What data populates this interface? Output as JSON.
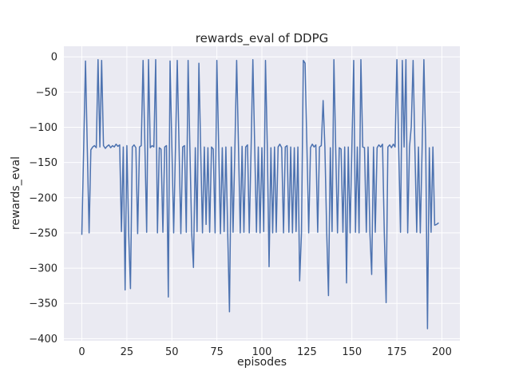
{
  "chart_data": {
    "type": "line",
    "title": "rewards_eval of DDPG",
    "xlabel": "episodes",
    "ylabel": "rewards_eval",
    "legend": "none",
    "grid": true,
    "plot_bg": "#EAEAF2",
    "grid_color": "#FFFFFF",
    "line_color": "#4C72B0",
    "tick_color": "#262626",
    "xlim": [
      -10,
      210
    ],
    "ylim": [
      -403,
      15
    ],
    "xticks": [
      0,
      25,
      50,
      75,
      100,
      125,
      150,
      175,
      200
    ],
    "yticks": [
      0,
      -50,
      -100,
      -150,
      -200,
      -250,
      -300,
      -350,
      -400
    ],
    "x_start": 0,
    "x_step": 1,
    "values": [
      -252,
      -130,
      -6,
      -128,
      -250,
      -132,
      -128,
      -126,
      -129,
      -4,
      -128,
      -5,
      -126,
      -130,
      -127,
      -125,
      -129,
      -126,
      -128,
      -124,
      -127,
      -125,
      -248,
      -128,
      -331,
      -126,
      -252,
      -329,
      -128,
      -125,
      -129,
      -251,
      -128,
      -126,
      -5,
      -128,
      -249,
      -4,
      -129,
      -126,
      -128,
      -4,
      -250,
      -129,
      -131,
      -249,
      -128,
      -126,
      -341,
      -6,
      -129,
      -250,
      -128,
      -5,
      -130,
      -251,
      -128,
      -126,
      -249,
      -5,
      -128,
      -250,
      -299,
      -129,
      -248,
      -9,
      -128,
      -250,
      -128,
      -238,
      -129,
      -249,
      -128,
      -131,
      -250,
      -5,
      -128,
      -251,
      -129,
      -248,
      -128,
      -250,
      -362,
      -128,
      -249,
      -129,
      -5,
      -128,
      -250,
      -127,
      -249,
      -128,
      -125,
      -250,
      -129,
      -4,
      -128,
      -249,
      -128,
      -250,
      -129,
      -248,
      -5,
      -128,
      -298,
      -129,
      -250,
      -128,
      -249,
      -128,
      -124,
      -129,
      -250,
      -128,
      -126,
      -249,
      -128,
      -250,
      -129,
      -248,
      -128,
      -318,
      -249,
      -5,
      -9,
      -128,
      -250,
      -129,
      -124,
      -128,
      -125,
      -249,
      -128,
      -126,
      -62,
      -128,
      -250,
      -339,
      -129,
      -248,
      -4,
      -128,
      -250,
      -129,
      -131,
      -249,
      -128,
      -321,
      -128,
      -250,
      -129,
      -5,
      -249,
      -128,
      -250,
      -4,
      -128,
      -129,
      -249,
      -128,
      -250,
      -309,
      -128,
      -249,
      -129,
      -125,
      -128,
      -124,
      -250,
      -349,
      -128,
      -125,
      -129,
      -124,
      -128,
      -4,
      -128,
      -249,
      -5,
      -128,
      -4,
      -250,
      -128,
      -99,
      -5,
      -128,
      -249,
      -128,
      -250,
      -129,
      -4,
      -128,
      -386,
      -129,
      -249,
      -128,
      -239,
      -238,
      -236
    ]
  }
}
